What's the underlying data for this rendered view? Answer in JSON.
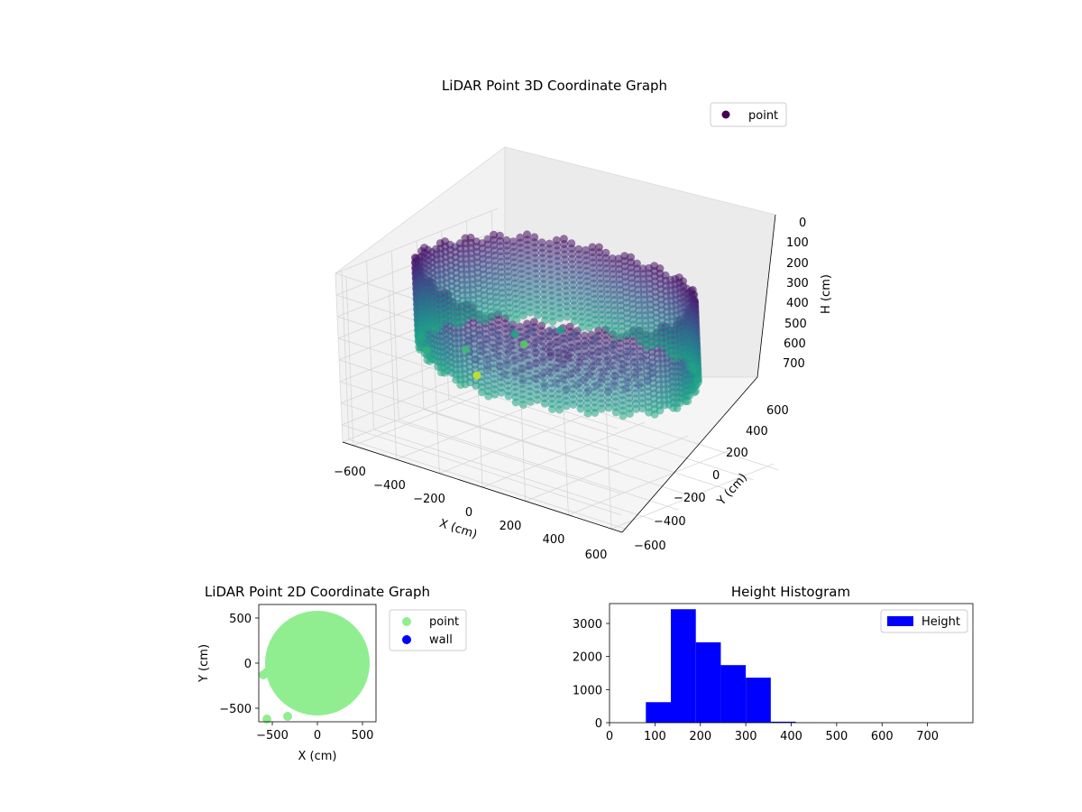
{
  "chart_data": [
    {
      "type": "scatter3d",
      "title": "LiDAR Point 3D Coordinate Graph",
      "xlabel": "X (cm)",
      "ylabel": "Y (cm)",
      "zlabel": "H (cm)",
      "xlim": [
        -650,
        650
      ],
      "ylim": [
        -650,
        650
      ],
      "zlim": [
        780,
        0
      ],
      "xticks": [
        "−600",
        "−400",
        "−200",
        "0",
        "200",
        "400",
        "600"
      ],
      "yticks": [
        "−600",
        "−400",
        "−200",
        "0",
        "200",
        "400",
        "600"
      ],
      "zticks": [
        "0",
        "100",
        "200",
        "300",
        "400",
        "500",
        "600",
        "700"
      ],
      "zaxis_inverted": true,
      "colormap": "viridis",
      "legend": {
        "entries": [
          {
            "label": "point",
            "color": "#440154"
          }
        ],
        "position": "upper right"
      },
      "series": [
        {
          "name": "point",
          "shape": "cylindrical wall",
          "wall_radius": 560,
          "wall_height_range": [
            0,
            380
          ],
          "floor_height": 340,
          "outliers": [
            {
              "x": -560,
              "y": -200,
              "h": 520
            },
            {
              "x": -600,
              "y": 40,
              "h": 480
            },
            {
              "x": -420,
              "y": -360,
              "h": 440
            },
            {
              "x": -300,
              "y": -520,
              "h": 420
            },
            {
              "x": -620,
              "y": -380,
              "h": 700
            },
            {
              "x": -500,
              "y": -560,
              "h": 560
            }
          ]
        }
      ],
      "grid": true
    },
    {
      "type": "scatter",
      "title": "LiDAR Point 2D Coordinate Graph",
      "xlabel": "X (cm)",
      "ylabel": "Y (cm)",
      "xlim": [
        -650,
        650
      ],
      "ylim": [
        -650,
        650
      ],
      "xticks": [
        -500,
        0,
        500
      ],
      "yticks": [
        -500,
        0,
        500
      ],
      "legend": {
        "entries": [
          {
            "label": "point",
            "color": "#90ee90"
          },
          {
            "label": "wall",
            "color": "#0000ff"
          }
        ],
        "position": "outside right"
      },
      "series": [
        {
          "name": "point",
          "color": "#90ee90",
          "shape": "filled disk",
          "center": [
            0,
            0
          ],
          "radius": 580,
          "extra_points": [
            [
              -560,
              -620
            ],
            [
              -330,
              -590
            ],
            [
              -600,
              -130
            ],
            [
              -560,
              -100
            ]
          ]
        },
        {
          "name": "wall",
          "color": "#0000ff",
          "points": []
        }
      ]
    },
    {
      "type": "bar",
      "title": "Height Histogram",
      "xlabel": "",
      "ylabel": "",
      "xlim": [
        0,
        800
      ],
      "ylim": [
        0,
        3600
      ],
      "xticks": [
        0,
        100,
        200,
        300,
        400,
        500,
        600,
        700
      ],
      "yticks": [
        0,
        1000,
        2000,
        3000
      ],
      "legend": {
        "entries": [
          {
            "label": "Height",
            "color": "#0000ff"
          }
        ],
        "position": "upper right"
      },
      "series": [
        {
          "name": "Height",
          "color": "#0000ff",
          "bins": [
            {
              "x0": 80,
              "x1": 135,
              "count": 620
            },
            {
              "x0": 135,
              "x1": 190,
              "count": 3430
            },
            {
              "x0": 190,
              "x1": 245,
              "count": 2430
            },
            {
              "x0": 245,
              "x1": 300,
              "count": 1740
            },
            {
              "x0": 300,
              "x1": 355,
              "count": 1360
            },
            {
              "x0": 355,
              "x1": 410,
              "count": 30
            },
            {
              "x0": 410,
              "x1": 465,
              "count": 4
            },
            {
              "x0": 465,
              "x1": 520,
              "count": 2
            },
            {
              "x0": 520,
              "x1": 575,
              "count": 1
            },
            {
              "x0": 575,
              "x1": 630,
              "count": 1
            },
            {
              "x0": 630,
              "x1": 685,
              "count": 1
            },
            {
              "x0": 685,
              "x1": 740,
              "count": 1
            },
            {
              "x0": 740,
              "x1": 795,
              "count": 1
            }
          ]
        }
      ]
    }
  ]
}
